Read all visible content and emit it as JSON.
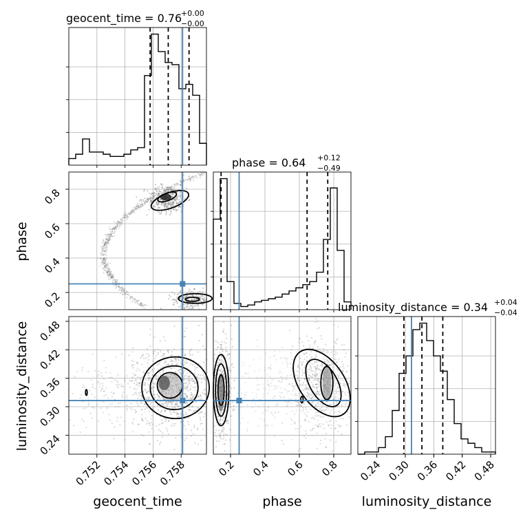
{
  "colors": {
    "truth": "#4682b4",
    "contour": "#000000",
    "samples": "#888888",
    "grid": "#b0b0b0"
  },
  "titles": {
    "geocent_time": {
      "label": "geocent_time = 0.76",
      "upper": "+0.00",
      "lower": "−0.00"
    },
    "phase": {
      "label": "phase = 0.64",
      "upper": "+0.12",
      "lower": "−0.49"
    },
    "luminosity_distance": {
      "label": "luminosity_distance = 0.34",
      "upper": "+0.04",
      "lower": "−0.04"
    }
  },
  "chart_data": {
    "type": "corner",
    "parameters": [
      "geocent_time",
      "phase",
      "luminosity_distance"
    ],
    "axis_labels": {
      "geocent_time": "geocent_time",
      "phase": "phase",
      "luminosity_distance": "luminosity_distance"
    },
    "ranges": {
      "geocent_time": [
        0.75,
        0.7598
      ],
      "phase": [
        0.1,
        0.9
      ],
      "luminosity_distance": [
        0.2,
        0.49
      ]
    },
    "ticks": {
      "geocent_time": [
        0.752,
        0.754,
        0.756,
        0.758
      ],
      "phase": [
        0.2,
        0.4,
        0.6,
        0.8
      ],
      "luminosity_distance": [
        0.24,
        0.3,
        0.36,
        0.42,
        0.48
      ]
    },
    "tick_labels": {
      "geocent_time": [
        "0.752",
        "0.754",
        "0.756",
        "0.758"
      ],
      "phase": [
        "0.2",
        "0.4",
        "0.6",
        "0.8"
      ],
      "luminosity_distance": [
        "0.24",
        "0.30",
        "0.36",
        "0.42",
        "0.48"
      ]
    },
    "truths": {
      "geocent_time": 0.7581,
      "phase": 0.25,
      "luminosity_distance": 0.313
    },
    "quantiles": {
      "geocent_time": [
        0.75579,
        0.75708,
        0.75856
      ],
      "phase": [
        0.145,
        0.645,
        0.765
      ],
      "luminosity_distance": [
        0.297,
        0.335,
        0.379
      ]
    },
    "histograms": {
      "geocent_time": {
        "edges": [
          0.75,
          0.75049,
          0.75098,
          0.75147,
          0.75196,
          0.75245,
          0.75294,
          0.75343,
          0.75392,
          0.75441,
          0.7549,
          0.75539,
          0.75588,
          0.75637,
          0.75686,
          0.75735,
          0.75784,
          0.75833,
          0.75882,
          0.75931,
          0.7598
        ],
        "counts": [
          3,
          5,
          12,
          6,
          6,
          5,
          4,
          4,
          5,
          7,
          8,
          41,
          60,
          52,
          47,
          46,
          35,
          37,
          32,
          10
        ]
      },
      "phase": {
        "edges": [
          0.1,
          0.14,
          0.18,
          0.22,
          0.26,
          0.3,
          0.34,
          0.38,
          0.42,
          0.46,
          0.5,
          0.54,
          0.58,
          0.62,
          0.66,
          0.7,
          0.74,
          0.78,
          0.82,
          0.86,
          0.9
        ],
        "counts": [
          58,
          84,
          18,
          4,
          2,
          3,
          5,
          6,
          7,
          8,
          10,
          12,
          14,
          16,
          18,
          24,
          45,
          78,
          38,
          5
        ]
      },
      "luminosity_distance": {
        "edges": [
          0.2,
          0.2145,
          0.229,
          0.2435,
          0.258,
          0.2725,
          0.287,
          0.3015,
          0.316,
          0.3305,
          0.345,
          0.3595,
          0.374,
          0.3885,
          0.403,
          0.4175,
          0.432,
          0.4465,
          0.461,
          0.4755,
          0.49
        ],
        "counts": [
          0,
          1,
          1,
          3,
          8,
          20,
          37,
          45,
          57,
          60,
          52,
          45,
          38,
          25,
          14,
          7,
          5,
          3,
          1,
          1
        ]
      }
    },
    "grid": true
  }
}
